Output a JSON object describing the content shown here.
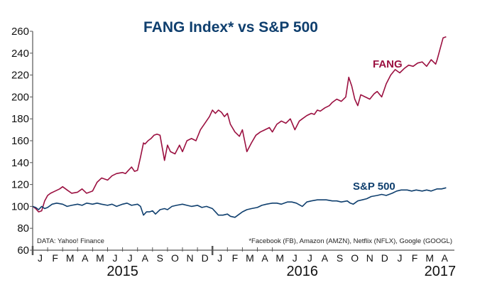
{
  "chart_data": {
    "type": "line",
    "title": "FANG Index* vs S&P 500",
    "xlabel": "",
    "ylabel": "",
    "ylim": [
      60,
      260
    ],
    "yticks": [
      60,
      80,
      100,
      120,
      140,
      160,
      180,
      200,
      220,
      240,
      260
    ],
    "x_unit": "months since Jan 1, 2015",
    "xlim": [
      0,
      16.1
    ],
    "month_labels": [
      "J",
      "F",
      "M",
      "A",
      "M",
      "J",
      "J",
      "A",
      "S",
      "O",
      "N",
      "D",
      "J",
      "F",
      "M",
      "A",
      "M",
      "J",
      "J",
      "A",
      "S",
      "O",
      "N",
      "D",
      "J",
      "F",
      "M",
      "A"
    ],
    "year_labels": [
      {
        "label": "2015",
        "at_month": 6
      },
      {
        "label": "2016",
        "at_month": 18
      },
      {
        "label": "2017",
        "at_month": 27.2
      }
    ],
    "grid": false,
    "colors": {
      "FANG": "#9b1040",
      "S&P 500": "#0f3f6e",
      "axis": "#555555"
    },
    "series": [
      {
        "name": "FANG",
        "label": "FANG",
        "x": [
          0,
          0.2,
          0.4,
          0.6,
          0.8,
          1.0,
          1.2,
          1.5,
          1.8,
          2.0,
          2.3,
          2.6,
          3.0,
          3.3,
          3.6,
          4.0,
          4.3,
          4.6,
          5.0,
          5.3,
          5.6,
          6.0,
          6.2,
          6.4,
          6.6,
          6.8,
          7.0,
          7.2,
          7.4,
          7.5,
          7.7,
          7.9,
          8.1,
          8.3,
          8.5,
          8.8,
          9.0,
          9.2,
          9.5,
          9.8,
          10.0,
          10.3,
          10.6,
          10.9,
          11.2,
          11.5,
          11.8,
          12.0,
          12.2,
          12.4,
          12.6,
          12.8,
          13.0,
          13.2,
          13.5,
          13.8,
          14.0,
          14.3,
          14.6,
          14.9,
          15.2,
          15.5,
          15.8,
          16.0,
          16.3,
          16.6,
          16.9,
          17.2,
          17.5,
          17.8,
          18.0,
          18.3,
          18.6,
          18.8,
          19.0,
          19.2,
          19.5,
          19.8,
          20.0,
          20.3,
          20.6,
          20.9,
          21.1,
          21.3,
          21.5,
          21.7,
          21.9,
          22.2,
          22.5,
          22.8,
          23.0,
          23.3,
          23.6,
          23.9,
          24.2,
          24.5,
          24.8,
          25.1,
          25.4,
          25.7,
          26.0,
          26.3,
          26.6,
          26.9,
          27.0,
          27.2,
          27.4,
          27.6
        ],
        "values": [
          100,
          98,
          95,
          96,
          105,
          110,
          112,
          114,
          116,
          118,
          115,
          112,
          113,
          116,
          112,
          114,
          122,
          126,
          124,
          128,
          130,
          131,
          130,
          133,
          136,
          132,
          133,
          145,
          158,
          157,
          160,
          162,
          165,
          166,
          165,
          142,
          156,
          150,
          148,
          156,
          150,
          160,
          162,
          160,
          170,
          176,
          182,
          188,
          185,
          188,
          186,
          182,
          185,
          175,
          168,
          164,
          170,
          150,
          158,
          165,
          168,
          170,
          172,
          168,
          175,
          178,
          176,
          180,
          170,
          178,
          180,
          183,
          185,
          184,
          188,
          187,
          190,
          192,
          195,
          198,
          196,
          200,
          218,
          210,
          198,
          192,
          202,
          200,
          198,
          203,
          205,
          200,
          212,
          220,
          225,
          222,
          226,
          229,
          228,
          231,
          232,
          228,
          234,
          230,
          234,
          244,
          254,
          255
        ]
      },
      {
        "name": "S&P 500",
        "label": "S&P 500",
        "x": [
          0,
          0.2,
          0.4,
          0.6,
          0.8,
          1.0,
          1.3,
          1.6,
          2.0,
          2.3,
          2.6,
          3.0,
          3.3,
          3.6,
          4.0,
          4.3,
          4.6,
          5.0,
          5.3,
          5.6,
          6.0,
          6.3,
          6.6,
          7.0,
          7.2,
          7.4,
          7.6,
          7.8,
          8.0,
          8.2,
          8.5,
          8.8,
          9.0,
          9.3,
          9.6,
          10.0,
          10.3,
          10.6,
          11.0,
          11.3,
          11.6,
          12.0,
          12.2,
          12.4,
          12.7,
          13.0,
          13.2,
          13.5,
          13.8,
          14.0,
          14.3,
          14.6,
          15.0,
          15.3,
          15.6,
          16.0,
          16.3,
          16.6,
          17.0,
          17.3,
          17.6,
          18.0,
          18.3,
          18.6,
          19.0,
          19.3,
          19.6,
          20.0,
          20.3,
          20.6,
          21.0,
          21.2,
          21.4,
          21.7,
          22.0,
          22.3,
          22.6,
          23.0,
          23.3,
          23.6,
          24.0,
          24.3,
          24.6,
          25.0,
          25.3,
          25.6,
          26.0,
          26.3,
          26.6,
          27.0,
          27.3,
          27.6
        ],
        "values": [
          100,
          99,
          97,
          100,
          98,
          99,
          102,
          103,
          102,
          100,
          101,
          102,
          101,
          103,
          102,
          103,
          102,
          101,
          102,
          100,
          102,
          103,
          101,
          102,
          100,
          92,
          95,
          95,
          96,
          93,
          97,
          98,
          97,
          100,
          101,
          102,
          101,
          100,
          101,
          99,
          100,
          98,
          95,
          92,
          92,
          93,
          91,
          90,
          93,
          95,
          97,
          98,
          99,
          101,
          102,
          103,
          103,
          102,
          104,
          104,
          103,
          100,
          104,
          105,
          106,
          106,
          106,
          105,
          105,
          104,
          105,
          103,
          102,
          105,
          106,
          107,
          109,
          110,
          111,
          110,
          112,
          114,
          115,
          115,
          114,
          115,
          114,
          115,
          114,
          116,
          116,
          117
        ]
      }
    ],
    "annotations": [
      {
        "text": "FANG",
        "series": "FANG"
      },
      {
        "text": "S&P 500",
        "series": "S&P 500"
      },
      {
        "text": "DATA:  Yahoo! Finance"
      },
      {
        "text": "*Facebook (FB), Amazon (AMZN), Netflix (NFLX), Google (GOOGL)"
      }
    ]
  }
}
